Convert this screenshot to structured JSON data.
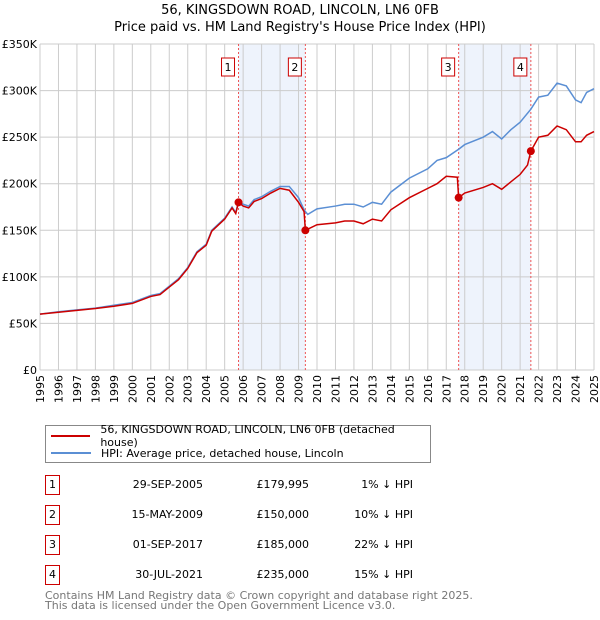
{
  "chart_data": {
    "type": "line",
    "title": "56, KINGSDOWN ROAD, LINCOLN, LN6 0FB",
    "subtitle": "Price paid vs. HM Land Registry's House Price Index (HPI)",
    "xlim": [
      1995,
      2025
    ],
    "ylim": [
      0,
      350000
    ],
    "x_ticks": [
      "1995",
      "1996",
      "1997",
      "1998",
      "1999",
      "2000",
      "2001",
      "2002",
      "2003",
      "2004",
      "2005",
      "2006",
      "2007",
      "2008",
      "2009",
      "2010",
      "2011",
      "2012",
      "2013",
      "2014",
      "2015",
      "2016",
      "2017",
      "2018",
      "2019",
      "2020",
      "2021",
      "2022",
      "2023",
      "2024",
      "2025"
    ],
    "y_ticks": [
      {
        "v": 0,
        "label": "£0"
      },
      {
        "v": 50000,
        "label": "£50K"
      },
      {
        "v": 100000,
        "label": "£100K"
      },
      {
        "v": 150000,
        "label": "£150K"
      },
      {
        "v": 200000,
        "label": "£200K"
      },
      {
        "v": 250000,
        "label": "£250K"
      },
      {
        "v": 300000,
        "label": "£300K"
      },
      {
        "v": 350000,
        "label": "£350K"
      }
    ],
    "grid": true,
    "shaded_ranges": [
      [
        2005.75,
        2009.37
      ],
      [
        2017.67,
        2021.58
      ]
    ],
    "series": [
      {
        "name": "56, KINGSDOWN ROAD, LINCOLN, LN6 0FB (detached house)",
        "color": "#cc0000",
        "points": [
          [
            1995,
            60000
          ],
          [
            1996,
            62000
          ],
          [
            1997,
            64000
          ],
          [
            1998,
            66000
          ],
          [
            1999,
            68500
          ],
          [
            2000,
            71500
          ],
          [
            2001,
            79000
          ],
          [
            2001.5,
            81000
          ],
          [
            2002,
            89000
          ],
          [
            2002.5,
            97000
          ],
          [
            2003,
            109000
          ],
          [
            2003.5,
            126000
          ],
          [
            2004,
            134000
          ],
          [
            2004.3,
            149000
          ],
          [
            2005,
            162000
          ],
          [
            2005.4,
            174000
          ],
          [
            2005.6,
            168000
          ],
          [
            2005.75,
            179995
          ],
          [
            2006,
            176000
          ],
          [
            2006.3,
            174000
          ],
          [
            2006.6,
            181000
          ],
          [
            2007,
            184000
          ],
          [
            2007.5,
            190000
          ],
          [
            2008,
            195000
          ],
          [
            2008.5,
            193000
          ],
          [
            2009,
            180000
          ],
          [
            2009.3,
            170000
          ],
          [
            2009.37,
            150000
          ],
          [
            2010,
            156000
          ],
          [
            2011,
            158000
          ],
          [
            2011.5,
            160000
          ],
          [
            2012,
            160000
          ],
          [
            2012.5,
            157000
          ],
          [
            2013,
            162000
          ],
          [
            2013.5,
            160000
          ],
          [
            2014,
            172000
          ],
          [
            2015,
            185000
          ],
          [
            2016,
            195000
          ],
          [
            2016.5,
            200000
          ],
          [
            2017,
            208000
          ],
          [
            2017.6,
            207000
          ],
          [
            2017.67,
            185000
          ],
          [
            2018,
            190000
          ],
          [
            2019,
            196000
          ],
          [
            2019.5,
            200000
          ],
          [
            2020,
            194000
          ],
          [
            2020.5,
            202000
          ],
          [
            2021,
            210000
          ],
          [
            2021.4,
            220000
          ],
          [
            2021.58,
            235000
          ],
          [
            2022,
            250000
          ],
          [
            2022.5,
            252000
          ],
          [
            2023,
            262000
          ],
          [
            2023.5,
            258000
          ],
          [
            2024,
            245000
          ],
          [
            2024.3,
            245000
          ],
          [
            2024.6,
            252000
          ],
          [
            2025,
            256000
          ]
        ]
      },
      {
        "name": "HPI: Average price, detached house, Lincoln",
        "color": "#5b8fd4",
        "points": [
          [
            1995,
            60000
          ],
          [
            1996,
            62500
          ],
          [
            1997,
            64500
          ],
          [
            1998,
            66500
          ],
          [
            1999,
            69500
          ],
          [
            2000,
            72500
          ],
          [
            2001,
            80000
          ],
          [
            2001.5,
            82000
          ],
          [
            2002,
            90000
          ],
          [
            2002.5,
            98000
          ],
          [
            2003,
            110000
          ],
          [
            2003.5,
            127000
          ],
          [
            2004,
            135000
          ],
          [
            2004.3,
            150000
          ],
          [
            2005,
            163000
          ],
          [
            2005.4,
            175000
          ],
          [
            2005.6,
            169000
          ],
          [
            2005.75,
            181000
          ],
          [
            2006,
            178000
          ],
          [
            2006.3,
            176000
          ],
          [
            2006.6,
            183000
          ],
          [
            2007,
            186000
          ],
          [
            2007.5,
            192000
          ],
          [
            2008,
            197000
          ],
          [
            2008.5,
            197000
          ],
          [
            2009,
            185000
          ],
          [
            2009.3,
            172000
          ],
          [
            2009.5,
            167000
          ],
          [
            2010,
            173000
          ],
          [
            2011,
            176000
          ],
          [
            2011.5,
            178000
          ],
          [
            2012,
            178000
          ],
          [
            2012.5,
            175000
          ],
          [
            2013,
            180000
          ],
          [
            2013.5,
            178000
          ],
          [
            2014,
            191000
          ],
          [
            2015,
            206000
          ],
          [
            2016,
            216000
          ],
          [
            2016.5,
            225000
          ],
          [
            2017,
            228000
          ],
          [
            2017.67,
            237000
          ],
          [
            2018,
            242000
          ],
          [
            2019,
            250000
          ],
          [
            2019.5,
            256000
          ],
          [
            2020,
            248000
          ],
          [
            2020.5,
            258000
          ],
          [
            2021,
            266000
          ],
          [
            2021.58,
            280000
          ],
          [
            2022,
            293000
          ],
          [
            2022.5,
            295000
          ],
          [
            2023,
            308000
          ],
          [
            2023.5,
            305000
          ],
          [
            2024,
            290000
          ],
          [
            2024.3,
            287000
          ],
          [
            2024.6,
            298000
          ],
          [
            2025,
            302000
          ]
        ]
      }
    ],
    "sales": [
      {
        "id": "1",
        "x": 2005.75,
        "y": 179995
      },
      {
        "id": "2",
        "x": 2009.37,
        "y": 150000
      },
      {
        "id": "3",
        "x": 2017.67,
        "y": 185000
      },
      {
        "id": "4",
        "x": 2021.58,
        "y": 235000
      }
    ]
  },
  "legend": {
    "red": "56, KINGSDOWN ROAD, LINCOLN, LN6 0FB (detached house)",
    "blue": "HPI: Average price, detached house, Lincoln"
  },
  "table": [
    {
      "num": "1",
      "date": "29-SEP-2005",
      "price": "£179,995",
      "hpi": "1% ↓ HPI"
    },
    {
      "num": "2",
      "date": "15-MAY-2009",
      "price": "£150,000",
      "hpi": "10% ↓ HPI"
    },
    {
      "num": "3",
      "date": "01-SEP-2017",
      "price": "£185,000",
      "hpi": "22% ↓ HPI"
    },
    {
      "num": "4",
      "date": "30-JUL-2021",
      "price": "£235,000",
      "hpi": "15% ↓ HPI"
    }
  ],
  "footer": [
    "Contains HM Land Registry data © Crown copyright and database right 2025.",
    "This data is licensed under the Open Government Licence v3.0."
  ]
}
